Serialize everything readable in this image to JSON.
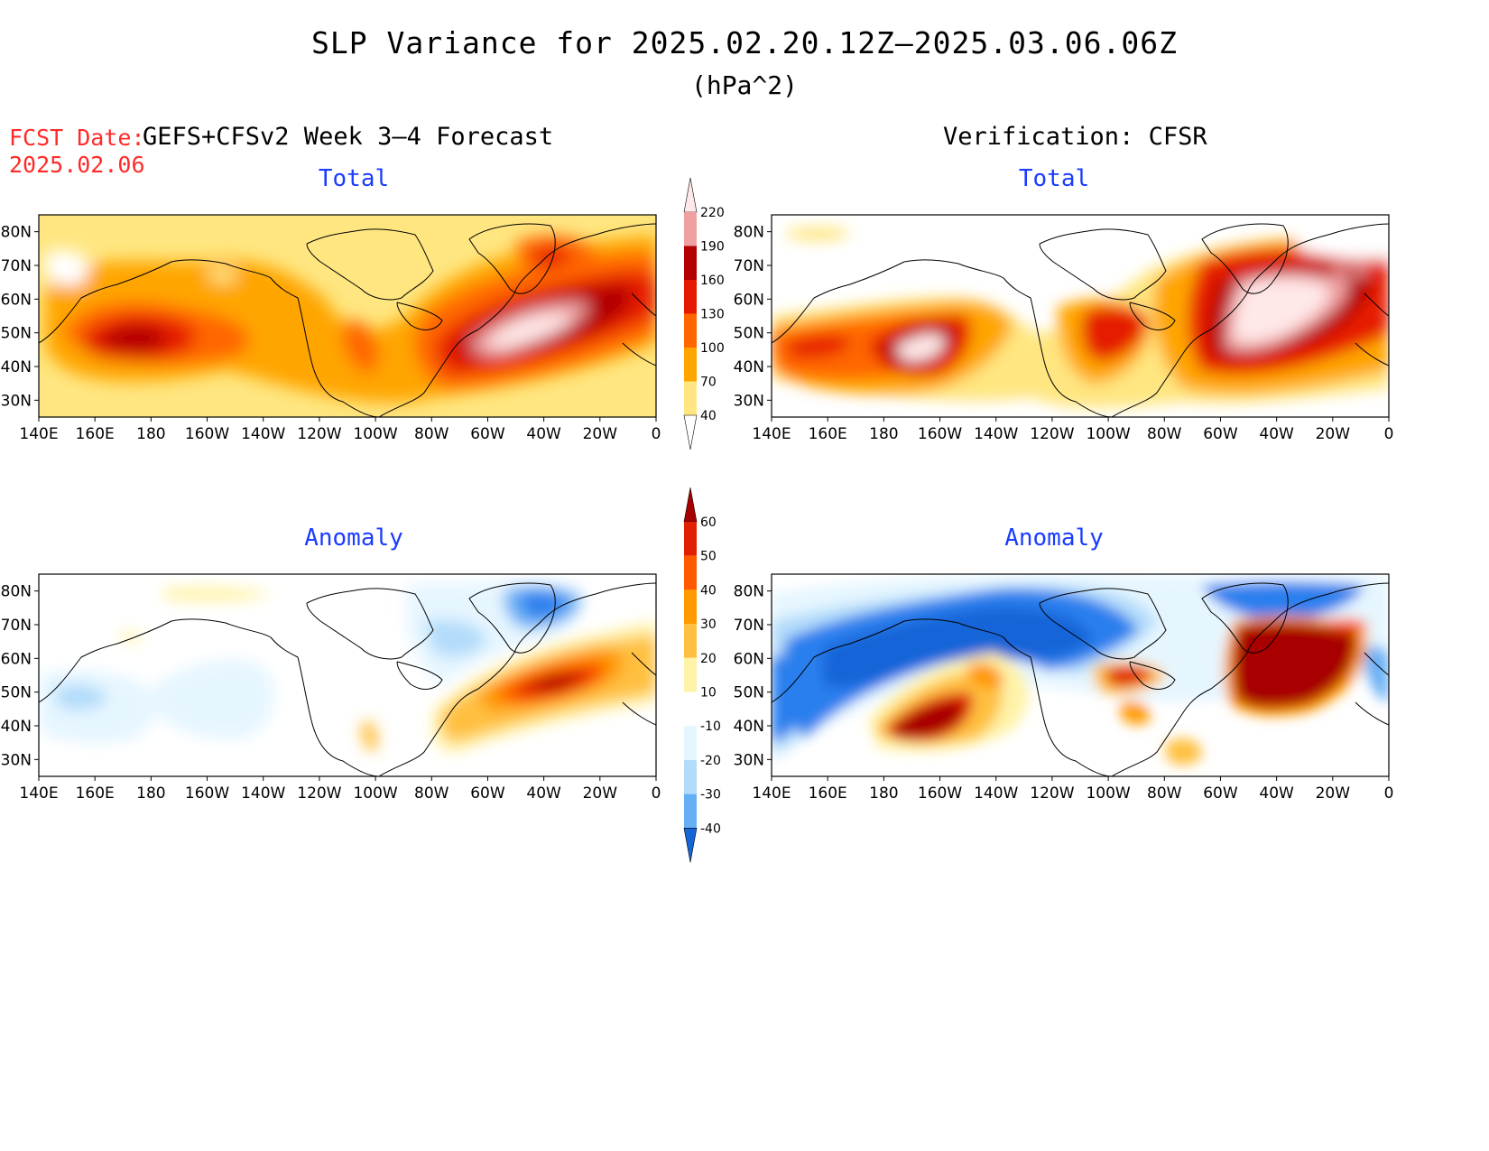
{
  "title": "SLP Variance for 2025.02.20.12Z–2025.03.06.06Z",
  "units": "(hPa^2)",
  "fcst_date_label": "FCST Date:",
  "fcst_date_value": "2025.02.06",
  "left_heading": "GEFS+CFSv2 Week 3–4 Forecast",
  "right_heading": "Verification: CFSR",
  "panels": {
    "fcst_total": {
      "title": "Total"
    },
    "verif_total": {
      "title": "Total"
    },
    "fcst_anom": {
      "title": "Anomaly"
    },
    "verif_anom": {
      "title": "Anomaly"
    }
  },
  "axes": {
    "x_labels": [
      "140E",
      "160E",
      "180",
      "160W",
      "140W",
      "120W",
      "100W",
      "80W",
      "60W",
      "40W",
      "20W",
      "0"
    ],
    "y_labels": [
      "30N",
      "40N",
      "50N",
      "60N",
      "70N",
      "80N"
    ]
  },
  "total_colorbar": {
    "levels": [
      "40",
      "70",
      "100",
      "130",
      "160",
      "190",
      "220"
    ],
    "colors": [
      "#ffe680",
      "#ffa500",
      "#ff6600",
      "#e61a00",
      "#b30000",
      "#f0a0a0",
      "#ffe8e8"
    ]
  },
  "anomaly_colorbar": {
    "levels": [
      "-40",
      "-30",
      "-20",
      "-10",
      "10",
      "20",
      "30",
      "40",
      "50",
      "60"
    ],
    "colors": [
      "#1565d8",
      "#2a7fee",
      "#66aff5",
      "#b3dcfa",
      "#e6f6ff",
      "#ffffff",
      "#fff3a8",
      "#ffc040",
      "#ff9a00",
      "#ff5a00",
      "#e02000",
      "#a80000"
    ]
  },
  "chart_data": [
    {
      "type": "heatmap",
      "title": "Total",
      "source": "GEFS+CFSv2 Week 3–4 Forecast",
      "xlim": [
        "140E",
        "0"
      ],
      "ylim": [
        "25N",
        "85N"
      ],
      "colorbar_levels": [
        40,
        70,
        100,
        130,
        160,
        190,
        220
      ]
    },
    {
      "type": "heatmap",
      "title": "Total",
      "source": "Verification: CFSR",
      "xlim": [
        "140E",
        "0"
      ],
      "ylim": [
        "25N",
        "85N"
      ],
      "colorbar_levels": [
        40,
        70,
        100,
        130,
        160,
        190,
        220
      ]
    },
    {
      "type": "heatmap",
      "title": "Anomaly",
      "source": "GEFS+CFSv2 Week 3–4 Forecast",
      "xlim": [
        "140E",
        "0"
      ],
      "ylim": [
        "25N",
        "85N"
      ],
      "colorbar_levels": [
        -40,
        -30,
        -20,
        -10,
        10,
        20,
        30,
        40,
        50,
        60
      ]
    },
    {
      "type": "heatmap",
      "title": "Anomaly",
      "source": "Verification: CFSR",
      "xlim": [
        "140E",
        "0"
      ],
      "ylim": [
        "25N",
        "85N"
      ],
      "colorbar_levels": [
        -40,
        -30,
        -20,
        -10,
        10,
        20,
        30,
        40,
        50,
        60
      ]
    }
  ]
}
